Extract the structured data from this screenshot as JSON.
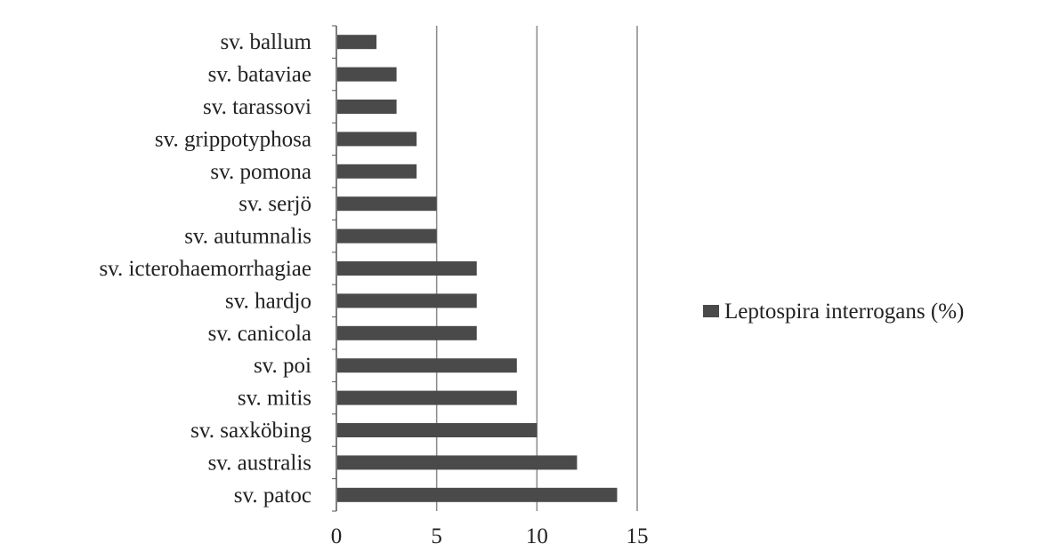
{
  "chart_data": {
    "type": "bar",
    "orientation": "horizontal",
    "categories": [
      "sv. ballum",
      "sv. bataviae",
      "sv. tarassovi",
      "sv. grippotyphosa",
      "sv. pomona",
      "sv. serjö",
      "sv. autumnalis",
      "sv. icterohaemorrhagiae",
      "sv. hardjo",
      "sv. canicola",
      "sv. poi",
      "sv. mitis",
      "sv. saxköbing",
      "sv. australis",
      "sv. patoc"
    ],
    "series": [
      {
        "name": "Leptospira interrogans (%)",
        "color": "#4a4a4a",
        "values": [
          2,
          3,
          3,
          4,
          4,
          5,
          5,
          7,
          7,
          7,
          9,
          9,
          10,
          12,
          14
        ]
      }
    ],
    "xlim": [
      0,
      15
    ],
    "xticks": [
      0,
      5,
      10,
      15
    ],
    "grid": "vertical",
    "legend_position": "right",
    "axis_color": "#555555",
    "grid_color": "#8a8a8a"
  }
}
